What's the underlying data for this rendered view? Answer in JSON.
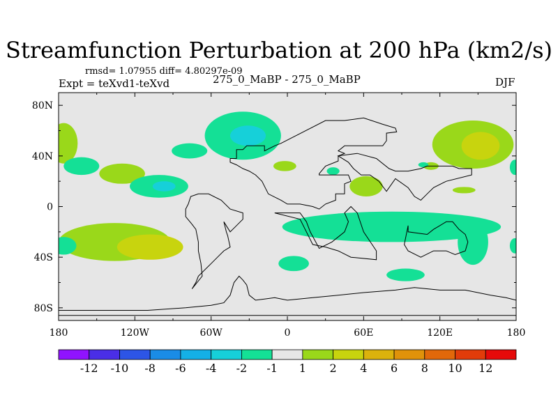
{
  "chart_data": {
    "type": "heatmap",
    "title": "Streamfunction Perturbation at 200 hPa (km2/s)",
    "stats_text": "rmsd= 1.07955 diff= 4.80297e-09",
    "experiment_text": "Expt = teXvd1-teXvd",
    "run_text": "275_0_MaBP - 275_0_MaBP",
    "season": "DJF",
    "x_ticks": [
      {
        "value": -180,
        "label": "180"
      },
      {
        "value": -120,
        "label": "120W"
      },
      {
        "value": -60,
        "label": "60W"
      },
      {
        "value": 0,
        "label": "0"
      },
      {
        "value": 60,
        "label": "60E"
      },
      {
        "value": 120,
        "label": "120E"
      },
      {
        "value": 180,
        "label": "180"
      }
    ],
    "y_ticks": [
      {
        "value": 80,
        "label": "80N"
      },
      {
        "value": 40,
        "label": "40N"
      },
      {
        "value": 0,
        "label": "0"
      },
      {
        "value": -40,
        "label": "40S"
      },
      {
        "value": -80,
        "label": "80S"
      }
    ],
    "xlim": [
      -180,
      180
    ],
    "ylim": [
      -90,
      90
    ],
    "background_color": "#e6e6e6",
    "colorbar": {
      "colors": [
        "#9013fe",
        "#4a2ee6",
        "#2d55e6",
        "#1a8ce6",
        "#14b0e6",
        "#16d0d9",
        "#14e096",
        "#e6e6e6",
        "#9ad81a",
        "#c8d40e",
        "#dcb20c",
        "#e0920a",
        "#e2680a",
        "#e23c0a",
        "#e60a0a"
      ],
      "labels": [
        "-12",
        "-10",
        "-8",
        "-6",
        "-4",
        "-2",
        "-1",
        "1",
        "2",
        "4",
        "6",
        "8",
        "10",
        "12"
      ]
    },
    "regions": [
      {
        "level": 2,
        "color": "#9ad81a",
        "cx": -136,
        "cy": -28,
        "rx": 44,
        "ry": 15
      },
      {
        "level": 4,
        "color": "#c8d40e",
        "cx": -108,
        "cy": -32,
        "rx": 26,
        "ry": 10
      },
      {
        "level": 2,
        "color": "#9ad81a",
        "cx": -176,
        "cy": 50,
        "rx": 11,
        "ry": 16
      },
      {
        "level": 2,
        "color": "#9ad81a",
        "cx": 146,
        "cy": 49,
        "rx": 32,
        "ry": 19
      },
      {
        "level": 4,
        "color": "#c8d40e",
        "cx": 152,
        "cy": 48,
        "rx": 15,
        "ry": 11
      },
      {
        "level": 2,
        "color": "#9ad81a",
        "cx": 62,
        "cy": 16,
        "rx": 13,
        "ry": 8
      },
      {
        "level": 2,
        "color": "#9ad81a",
        "cx": -2,
        "cy": 32,
        "rx": 9,
        "ry": 4
      },
      {
        "level": 2,
        "color": "#9ad81a",
        "cx": -130,
        "cy": 26,
        "rx": 18,
        "ry": 8
      },
      {
        "level": 2,
        "color": "#9ad81a",
        "cx": 113,
        "cy": 32,
        "rx": 6,
        "ry": 3
      },
      {
        "level": 2,
        "color": "#9ad81a",
        "cx": 139,
        "cy": 13,
        "rx": 9,
        "ry": 2.5
      },
      {
        "level": -1,
        "color": "#14e096",
        "cx": -35,
        "cy": 56,
        "rx": 30,
        "ry": 19
      },
      {
        "level": -2,
        "color": "#16d0d9",
        "cx": -31,
        "cy": 56,
        "rx": 14,
        "ry": 8
      },
      {
        "level": -1,
        "color": "#14e096",
        "cx": -162,
        "cy": 32,
        "rx": 14,
        "ry": 7
      },
      {
        "level": -1,
        "color": "#14e096",
        "cx": -101,
        "cy": 16,
        "rx": 23,
        "ry": 9
      },
      {
        "level": -2,
        "color": "#16d0d9",
        "cx": -97,
        "cy": 16,
        "rx": 9,
        "ry": 4
      },
      {
        "level": -1,
        "color": "#14e096",
        "cx": -77,
        "cy": 44,
        "rx": 14,
        "ry": 6
      },
      {
        "level": -1,
        "color": "#14e096",
        "cx": 82,
        "cy": -16,
        "rx": 86,
        "ry": 12
      },
      {
        "level": -1,
        "color": "#14e096",
        "cx": 146,
        "cy": -28,
        "rx": 12,
        "ry": 18
      },
      {
        "level": -1,
        "color": "#14e096",
        "cx": -176,
        "cy": -31,
        "rx": 10,
        "ry": 7
      },
      {
        "level": -1,
        "color": "#14e096",
        "cx": 5,
        "cy": -45,
        "rx": 12,
        "ry": 6
      },
      {
        "level": -1,
        "color": "#14e096",
        "cx": 93,
        "cy": -54,
        "rx": 15,
        "ry": 5
      },
      {
        "level": -1,
        "color": "#14e096",
        "cx": 179,
        "cy": 31,
        "rx": 4,
        "ry": 6
      },
      {
        "level": -1,
        "color": "#14e096",
        "cx": 179,
        "cy": -31,
        "rx": 4,
        "ry": 6
      },
      {
        "level": -1,
        "color": "#14e096",
        "cx": 36,
        "cy": 28,
        "rx": 5,
        "ry": 3
      },
      {
        "level": -1,
        "color": "#14e096",
        "cx": 107,
        "cy": 33,
        "rx": 4,
        "ry": 2
      }
    ],
    "continents": [
      {
        "name": "north-america-outline",
        "points": [
          [
            -45,
            35
          ],
          [
            -45,
            38
          ],
          [
            -40,
            38
          ],
          [
            -40,
            45
          ],
          [
            -35,
            45
          ],
          [
            -32,
            48
          ],
          [
            -24,
            48
          ],
          [
            -18,
            48
          ],
          [
            -18,
            44
          ],
          [
            -10,
            48
          ],
          [
            -5,
            50
          ],
          [
            30,
            68
          ],
          [
            45,
            68
          ],
          [
            60,
            70
          ],
          [
            75,
            65
          ],
          [
            85,
            62
          ],
          [
            86,
            59
          ],
          [
            78,
            58
          ],
          [
            78,
            52
          ],
          [
            75,
            48
          ],
          [
            45,
            48
          ],
          [
            40,
            44
          ],
          [
            45,
            42
          ],
          [
            40,
            40
          ],
          [
            40,
            36
          ],
          [
            30,
            32
          ],
          [
            25,
            26
          ],
          [
            25,
            25
          ],
          [
            48,
            25
          ],
          [
            50,
            20
          ],
          [
            45,
            18
          ],
          [
            45,
            10
          ],
          [
            38,
            10
          ],
          [
            38,
            5
          ],
          [
            30,
            2
          ],
          [
            25,
            -2
          ],
          [
            20,
            0
          ],
          [
            10,
            2
          ],
          [
            0,
            2
          ],
          [
            -5,
            5
          ],
          [
            -15,
            10
          ],
          [
            -20,
            20
          ],
          [
            -25,
            25
          ],
          [
            -30,
            28
          ],
          [
            -35,
            30
          ],
          [
            -40,
            33
          ],
          [
            -45,
            35
          ]
        ]
      },
      {
        "name": "south-america-outline",
        "points": [
          [
            -50,
            -12
          ],
          [
            -48,
            -20
          ],
          [
            -47,
            -23
          ],
          [
            -45,
            -32
          ],
          [
            -50,
            -35
          ],
          [
            -55,
            -40
          ],
          [
            -60,
            -45
          ],
          [
            -70,
            -55
          ],
          [
            -72,
            -60
          ],
          [
            -75,
            -65
          ],
          [
            -67,
            -55
          ],
          [
            -68,
            -45
          ],
          [
            -70,
            -35
          ],
          [
            -70,
            -28
          ],
          [
            -72,
            -18
          ],
          [
            -75,
            -14
          ],
          [
            -80,
            -8
          ],
          [
            -80,
            -2
          ],
          [
            -78,
            2
          ],
          [
            -76,
            8
          ],
          [
            -70,
            10
          ],
          [
            -62,
            10
          ],
          [
            -52,
            5
          ],
          [
            -45,
            -2
          ],
          [
            -35,
            -5
          ],
          [
            -35,
            -10
          ],
          [
            -40,
            -15
          ],
          [
            -45,
            -20
          ],
          [
            -50,
            -12
          ]
        ]
      },
      {
        "name": "africa-outline",
        "points": [
          [
            -10,
            -5
          ],
          [
            0,
            -5
          ],
          [
            10,
            -5
          ],
          [
            15,
            -12
          ],
          [
            18,
            -20
          ],
          [
            25,
            -33
          ],
          [
            35,
            -28
          ],
          [
            45,
            -20
          ],
          [
            48,
            -12
          ],
          [
            45,
            -5
          ],
          [
            50,
            0
          ],
          [
            55,
            -5
          ],
          [
            60,
            -20
          ],
          [
            70,
            -35
          ],
          [
            70,
            -42
          ],
          [
            50,
            -40
          ],
          [
            40,
            -35
          ],
          [
            30,
            -32
          ],
          [
            20,
            -30
          ],
          [
            15,
            -20
          ],
          [
            10,
            -10
          ],
          [
            -10,
            -5
          ]
        ]
      },
      {
        "name": "asia-outline",
        "points": [
          [
            40,
            40
          ],
          [
            55,
            42
          ],
          [
            70,
            38
          ],
          [
            80,
            30
          ],
          [
            85,
            28
          ],
          [
            95,
            28
          ],
          [
            105,
            30
          ],
          [
            110,
            32
          ],
          [
            120,
            32
          ],
          [
            130,
            32
          ],
          [
            135,
            30
          ],
          [
            145,
            30
          ],
          [
            145,
            25
          ],
          [
            125,
            20
          ],
          [
            115,
            15
          ],
          [
            110,
            10
          ],
          [
            105,
            5
          ],
          [
            100,
            8
          ],
          [
            95,
            15
          ],
          [
            85,
            22
          ],
          [
            78,
            12
          ],
          [
            72,
            20
          ],
          [
            65,
            25
          ],
          [
            58,
            25
          ],
          [
            52,
            30
          ],
          [
            48,
            35
          ],
          [
            40,
            40
          ]
        ]
      },
      {
        "name": "australia-outline",
        "points": [
          [
            95,
            -15
          ],
          [
            95,
            -20
          ],
          [
            110,
            -22
          ],
          [
            115,
            -18
          ],
          [
            120,
            -15
          ],
          [
            125,
            -12
          ],
          [
            130,
            -12
          ],
          [
            135,
            -18
          ],
          [
            140,
            -22
          ],
          [
            142,
            -28
          ],
          [
            140,
            -35
          ],
          [
            132,
            -38
          ],
          [
            125,
            -35
          ],
          [
            115,
            -35
          ],
          [
            105,
            -40
          ],
          [
            95,
            -35
          ],
          [
            92,
            -30
          ],
          [
            95,
            -15
          ]
        ]
      },
      {
        "name": "antarctica-outline",
        "points": [
          [
            -180,
            -82
          ],
          [
            -155,
            -82
          ],
          [
            -130,
            -82
          ],
          [
            -110,
            -82
          ],
          [
            -80,
            -80
          ],
          [
            -60,
            -78
          ],
          [
            -50,
            -76
          ],
          [
            -45,
            -70
          ],
          [
            -42,
            -60
          ],
          [
            -38,
            -55
          ],
          [
            -35,
            -58
          ],
          [
            -32,
            -62
          ],
          [
            -30,
            -70
          ],
          [
            -25,
            -74
          ],
          [
            -10,
            -72
          ],
          [
            0,
            -74
          ],
          [
            20,
            -72
          ],
          [
            40,
            -70
          ],
          [
            60,
            -68
          ],
          [
            85,
            -66
          ],
          [
            100,
            -64
          ],
          [
            120,
            -66
          ],
          [
            140,
            -66
          ],
          [
            160,
            -70
          ],
          [
            172,
            -72
          ],
          [
            180,
            -74
          ],
          [
            180,
            -86
          ],
          [
            -180,
            -86
          ],
          [
            -180,
            -82
          ]
        ]
      }
    ]
  }
}
